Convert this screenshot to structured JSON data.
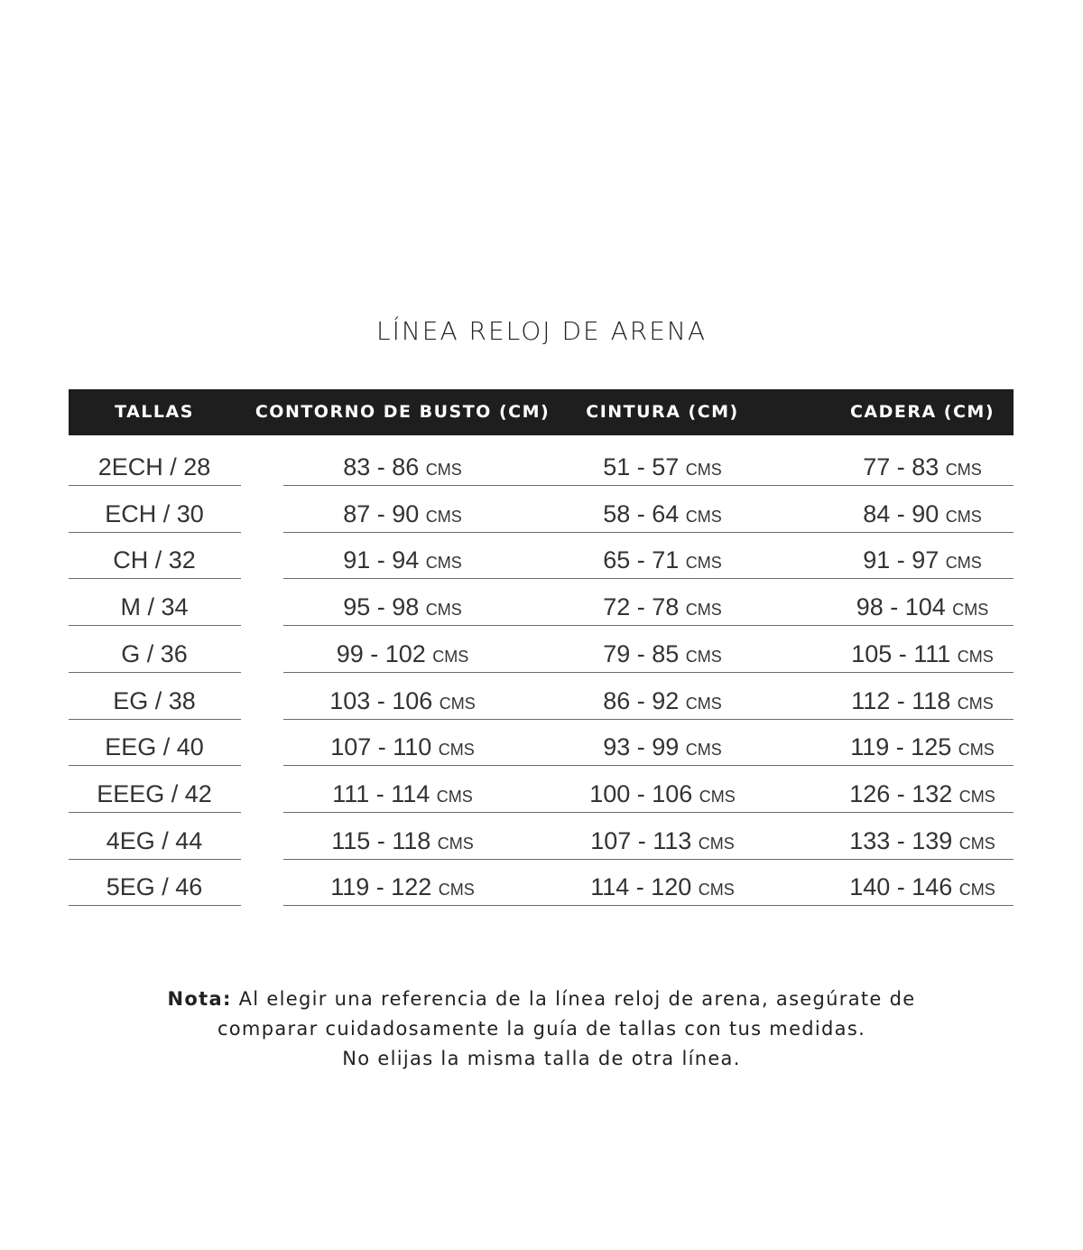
{
  "title": "LÍNEA RELOJ DE ARENA",
  "headers": [
    "TALLAS",
    "CONTORNO DE BUSTO (CM)",
    "CINTURA (CM)",
    "CADERA (CM)"
  ],
  "unit": "CMS",
  "rows": [
    {
      "size": "2ECH / 28",
      "bust": "83 - 86",
      "waist": "51 - 57",
      "hip": "77 - 83"
    },
    {
      "size": "ECH / 30",
      "bust": "87 - 90",
      "waist": "58 - 64",
      "hip": "84 - 90"
    },
    {
      "size": "CH / 32",
      "bust": "91 - 94",
      "waist": "65 - 71",
      "hip": "91 - 97"
    },
    {
      "size": "M / 34",
      "bust": "95 - 98",
      "waist": "72 - 78",
      "hip": "98 - 104"
    },
    {
      "size": "G / 36",
      "bust": "99 - 102",
      "waist": "79 - 85",
      "hip": "105 - 111"
    },
    {
      "size": "EG / 38",
      "bust": "103 - 106",
      "waist": "86 - 92",
      "hip": "112 - 118"
    },
    {
      "size": "EEG / 40",
      "bust": "107 - 110",
      "waist": "93 - 99",
      "hip": "119 - 125"
    },
    {
      "size": "EEEG / 42",
      "bust": "111 - 114",
      "waist": "100 - 106",
      "hip": "126 - 132"
    },
    {
      "size": "4EG / 44",
      "bust": "115 - 118",
      "waist": "107 - 113",
      "hip": "133 - 139"
    },
    {
      "size": "5EG / 46",
      "bust": "119 - 122",
      "waist": "114 - 120",
      "hip": "140 - 146"
    }
  ],
  "note": {
    "label": "Nota:",
    "line1": " Al elegir una referencia de la línea reloj de arena, asegúrate de",
    "line2": "comparar cuidadosamente la guía de tallas con tus medidas.",
    "line3": "No elijas la misma talla de otra línea."
  },
  "colors": {
    "header_bg": "#1e1e1e",
    "header_text": "#ffffff",
    "text": "#333333"
  }
}
